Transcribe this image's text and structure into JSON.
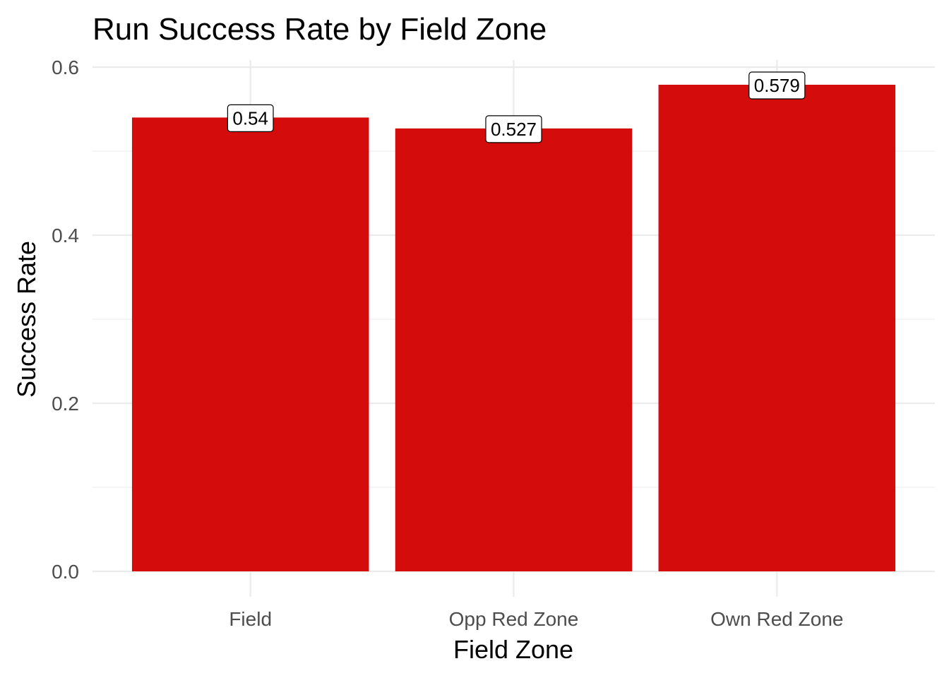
{
  "chart_data": {
    "type": "bar",
    "title": "Run Success Rate by Field Zone",
    "xlabel": "Field Zone",
    "ylabel": "Success Rate",
    "categories": [
      "Field",
      "Opp Red Zone",
      "Own Red Zone"
    ],
    "values": [
      0.54,
      0.527,
      0.579
    ],
    "data_labels": [
      "0.54",
      "0.527",
      "0.579"
    ],
    "ylim": [
      0,
      0.6
    ],
    "y_ticks": [
      0.0,
      0.2,
      0.4,
      0.6
    ],
    "y_tick_labels": [
      "0.0",
      "0.2",
      "0.4",
      "0.6"
    ],
    "grid": true,
    "legend": "none",
    "bar_color": "#d40c0c"
  }
}
